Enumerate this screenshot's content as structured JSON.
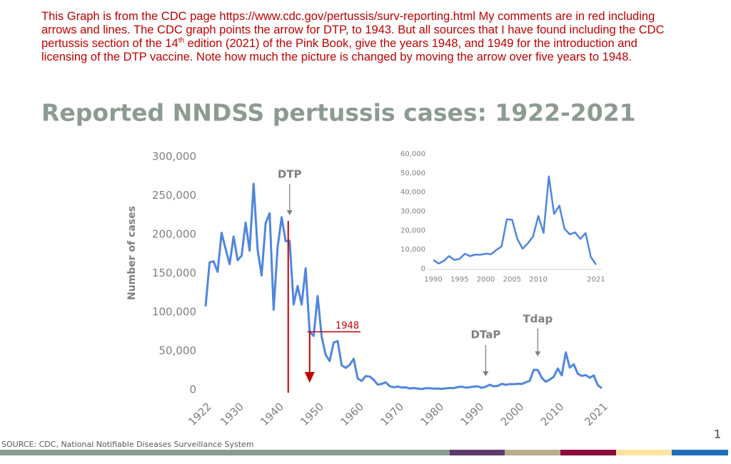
{
  "comment": {
    "before": "This Graph is from the CDC page https://www.cdc.gov/pertussis/surv-reporting.html My comments are in red including arrows and lines. The CDC graph points the arrow for DTP, to 1943. But all sources that I have found including the CDC pertussis section of the 14",
    "sup": "th",
    "after": " edition (2021) of the Pink Book, give the years 1948, and 1949 for the introduction and licensing of the DTP vaccine. Note how much the picture is changed by moving the arrow over five years to 1948."
  },
  "source": "SOURCE:  CDC, National Notifiable Diseases Surveillance System",
  "page_number": "1",
  "chart_data": [
    {
      "type": "line",
      "title": "Reported NNDSS pertussis cases: 1922-2021",
      "y_label": "Number of cases",
      "x": [
        1922,
        1923,
        1924,
        1925,
        1926,
        1927,
        1928,
        1929,
        1930,
        1931,
        1932,
        1933,
        1934,
        1935,
        1936,
        1937,
        1938,
        1939,
        1940,
        1941,
        1942,
        1943,
        1944,
        1945,
        1946,
        1947,
        1948,
        1949,
        1950,
        1951,
        1952,
        1953,
        1954,
        1955,
        1956,
        1957,
        1958,
        1959,
        1960,
        1961,
        1962,
        1963,
        1964,
        1965,
        1966,
        1967,
        1968,
        1969,
        1970,
        1971,
        1972,
        1973,
        1974,
        1975,
        1976,
        1977,
        1978,
        1979,
        1980,
        1981,
        1982,
        1983,
        1984,
        1985,
        1986,
        1987,
        1988,
        1989,
        1990,
        1991,
        1992,
        1993,
        1994,
        1995,
        1996,
        1997,
        1998,
        1999,
        2000,
        2001,
        2002,
        2003,
        2004,
        2005,
        2006,
        2007,
        2008,
        2009,
        2010,
        2011,
        2012,
        2013,
        2014,
        2015,
        2016,
        2017,
        2018,
        2019,
        2020,
        2021
      ],
      "series": [
        {
          "color": "#4f86e0",
          "values": [
            107473,
            164191,
            165418,
            152003,
            202210,
            181411,
            161799,
            197371,
            166914,
            172559,
            215343,
            179135,
            265269,
            180518,
            147237,
            214652,
            227319,
            103188,
            183866,
            222202,
            191383,
            191890,
            109873,
            133792,
            109860,
            156517,
            74715,
            69479,
            120718,
            68687,
            45030,
            37129,
            60886,
            62786,
            31732,
            28295,
            32148,
            40005,
            14809,
            11468,
            17749,
            17135,
            13005,
            6799,
            7717,
            9718,
            4810,
            3285,
            4249,
            3036,
            3287,
            1759,
            2402,
            1738,
            1010,
            2177,
            2063,
            1623,
            1730,
            1248,
            1895,
            2463,
            2276,
            3589,
            4195,
            2823,
            3450,
            4157,
            4570,
            2719,
            4083,
            6586,
            4617,
            5137,
            7796,
            6564,
            7405,
            7288,
            7867,
            7580,
            9771,
            11647,
            25827,
            25616,
            15632,
            10454,
            13278,
            16858,
            27550,
            18719,
            48277,
            28639,
            32971,
            20762,
            17972,
            18975,
            15609,
            18617,
            6124,
            2116
          ]
        }
      ],
      "xlim": [
        1922,
        2021
      ],
      "xticks": [
        1922,
        1930,
        1940,
        1950,
        1960,
        1970,
        1980,
        1990,
        2000,
        2010,
        2021
      ],
      "ylim": [
        0,
        300000
      ],
      "yticks": [
        0,
        {
          "value": 50000,
          "label": "50,000"
        },
        {
          "value": 100000,
          "label": "100,000"
        },
        {
          "value": 150000,
          "label": "150,000"
        },
        {
          "value": 200000,
          "label": "200,000"
        },
        {
          "value": 250000,
          "label": "250,000"
        },
        {
          "value": 300000,
          "label": "300,000"
        }
      ],
      "annotations": [
        {
          "text": "DTP",
          "x": 1943
        },
        {
          "text": "DTaP",
          "x": 1992
        },
        {
          "text": "Tdap",
          "x": 2005
        }
      ],
      "red_annotation": {
        "text": "1948",
        "x": 1948
      }
    },
    {
      "type": "line",
      "x": [
        1990,
        1991,
        1992,
        1993,
        1994,
        1995,
        1996,
        1997,
        1998,
        1999,
        2000,
        2001,
        2002,
        2003,
        2004,
        2005,
        2006,
        2007,
        2008,
        2009,
        2010,
        2011,
        2012,
        2013,
        2014,
        2015,
        2016,
        2017,
        2018,
        2019,
        2020,
        2021
      ],
      "series": [
        {
          "color": "#4f86e0",
          "values": [
            4570,
            2719,
            4083,
            6586,
            4617,
            5137,
            7796,
            6564,
            7405,
            7288,
            7867,
            7580,
            9771,
            11647,
            25827,
            25616,
            15632,
            10454,
            13278,
            16858,
            27550,
            18719,
            48277,
            28639,
            32971,
            20762,
            17972,
            18975,
            15609,
            18617,
            6124,
            2116
          ]
        }
      ],
      "xlim": [
        1990,
        2021
      ],
      "xticks": [
        1990,
        1995,
        2000,
        2005,
        2010,
        2021
      ],
      "ylim": [
        0,
        60000
      ],
      "yticks": [
        0,
        {
          "value": 10000,
          "label": "10,000"
        },
        {
          "value": 20000,
          "label": "20,000"
        },
        {
          "value": 30000,
          "label": "30,000"
        },
        {
          "value": 40000,
          "label": "40,000"
        },
        {
          "value": 50000,
          "label": "50,000"
        },
        {
          "value": 60000,
          "label": "60,000"
        }
      ]
    }
  ]
}
